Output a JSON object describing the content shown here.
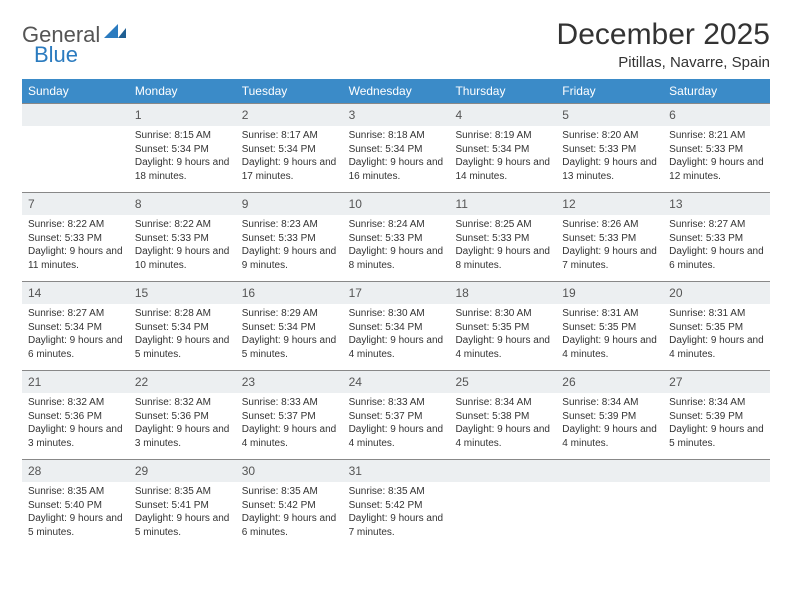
{
  "logo": {
    "text_gray": "General",
    "text_blue": "Blue"
  },
  "title": "December 2025",
  "location": "Pitillas, Navarre, Spain",
  "colors": {
    "header_bg": "#3b8bc8",
    "header_text": "#ffffff",
    "daynum_bg": "#eceff1",
    "border": "#888888",
    "text": "#333333"
  },
  "weekdays": [
    "Sunday",
    "Monday",
    "Tuesday",
    "Wednesday",
    "Thursday",
    "Friday",
    "Saturday"
  ],
  "weeks": [
    [
      {
        "n": "",
        "sunrise": "",
        "sunset": "",
        "daylight": ""
      },
      {
        "n": "1",
        "sunrise": "Sunrise: 8:15 AM",
        "sunset": "Sunset: 5:34 PM",
        "daylight": "Daylight: 9 hours and 18 minutes."
      },
      {
        "n": "2",
        "sunrise": "Sunrise: 8:17 AM",
        "sunset": "Sunset: 5:34 PM",
        "daylight": "Daylight: 9 hours and 17 minutes."
      },
      {
        "n": "3",
        "sunrise": "Sunrise: 8:18 AM",
        "sunset": "Sunset: 5:34 PM",
        "daylight": "Daylight: 9 hours and 16 minutes."
      },
      {
        "n": "4",
        "sunrise": "Sunrise: 8:19 AM",
        "sunset": "Sunset: 5:34 PM",
        "daylight": "Daylight: 9 hours and 14 minutes."
      },
      {
        "n": "5",
        "sunrise": "Sunrise: 8:20 AM",
        "sunset": "Sunset: 5:33 PM",
        "daylight": "Daylight: 9 hours and 13 minutes."
      },
      {
        "n": "6",
        "sunrise": "Sunrise: 8:21 AM",
        "sunset": "Sunset: 5:33 PM",
        "daylight": "Daylight: 9 hours and 12 minutes."
      }
    ],
    [
      {
        "n": "7",
        "sunrise": "Sunrise: 8:22 AM",
        "sunset": "Sunset: 5:33 PM",
        "daylight": "Daylight: 9 hours and 11 minutes."
      },
      {
        "n": "8",
        "sunrise": "Sunrise: 8:22 AM",
        "sunset": "Sunset: 5:33 PM",
        "daylight": "Daylight: 9 hours and 10 minutes."
      },
      {
        "n": "9",
        "sunrise": "Sunrise: 8:23 AM",
        "sunset": "Sunset: 5:33 PM",
        "daylight": "Daylight: 9 hours and 9 minutes."
      },
      {
        "n": "10",
        "sunrise": "Sunrise: 8:24 AM",
        "sunset": "Sunset: 5:33 PM",
        "daylight": "Daylight: 9 hours and 8 minutes."
      },
      {
        "n": "11",
        "sunrise": "Sunrise: 8:25 AM",
        "sunset": "Sunset: 5:33 PM",
        "daylight": "Daylight: 9 hours and 8 minutes."
      },
      {
        "n": "12",
        "sunrise": "Sunrise: 8:26 AM",
        "sunset": "Sunset: 5:33 PM",
        "daylight": "Daylight: 9 hours and 7 minutes."
      },
      {
        "n": "13",
        "sunrise": "Sunrise: 8:27 AM",
        "sunset": "Sunset: 5:33 PM",
        "daylight": "Daylight: 9 hours and 6 minutes."
      }
    ],
    [
      {
        "n": "14",
        "sunrise": "Sunrise: 8:27 AM",
        "sunset": "Sunset: 5:34 PM",
        "daylight": "Daylight: 9 hours and 6 minutes."
      },
      {
        "n": "15",
        "sunrise": "Sunrise: 8:28 AM",
        "sunset": "Sunset: 5:34 PM",
        "daylight": "Daylight: 9 hours and 5 minutes."
      },
      {
        "n": "16",
        "sunrise": "Sunrise: 8:29 AM",
        "sunset": "Sunset: 5:34 PM",
        "daylight": "Daylight: 9 hours and 5 minutes."
      },
      {
        "n": "17",
        "sunrise": "Sunrise: 8:30 AM",
        "sunset": "Sunset: 5:34 PM",
        "daylight": "Daylight: 9 hours and 4 minutes."
      },
      {
        "n": "18",
        "sunrise": "Sunrise: 8:30 AM",
        "sunset": "Sunset: 5:35 PM",
        "daylight": "Daylight: 9 hours and 4 minutes."
      },
      {
        "n": "19",
        "sunrise": "Sunrise: 8:31 AM",
        "sunset": "Sunset: 5:35 PM",
        "daylight": "Daylight: 9 hours and 4 minutes."
      },
      {
        "n": "20",
        "sunrise": "Sunrise: 8:31 AM",
        "sunset": "Sunset: 5:35 PM",
        "daylight": "Daylight: 9 hours and 4 minutes."
      }
    ],
    [
      {
        "n": "21",
        "sunrise": "Sunrise: 8:32 AM",
        "sunset": "Sunset: 5:36 PM",
        "daylight": "Daylight: 9 hours and 3 minutes."
      },
      {
        "n": "22",
        "sunrise": "Sunrise: 8:32 AM",
        "sunset": "Sunset: 5:36 PM",
        "daylight": "Daylight: 9 hours and 3 minutes."
      },
      {
        "n": "23",
        "sunrise": "Sunrise: 8:33 AM",
        "sunset": "Sunset: 5:37 PM",
        "daylight": "Daylight: 9 hours and 4 minutes."
      },
      {
        "n": "24",
        "sunrise": "Sunrise: 8:33 AM",
        "sunset": "Sunset: 5:37 PM",
        "daylight": "Daylight: 9 hours and 4 minutes."
      },
      {
        "n": "25",
        "sunrise": "Sunrise: 8:34 AM",
        "sunset": "Sunset: 5:38 PM",
        "daylight": "Daylight: 9 hours and 4 minutes."
      },
      {
        "n": "26",
        "sunrise": "Sunrise: 8:34 AM",
        "sunset": "Sunset: 5:39 PM",
        "daylight": "Daylight: 9 hours and 4 minutes."
      },
      {
        "n": "27",
        "sunrise": "Sunrise: 8:34 AM",
        "sunset": "Sunset: 5:39 PM",
        "daylight": "Daylight: 9 hours and 5 minutes."
      }
    ],
    [
      {
        "n": "28",
        "sunrise": "Sunrise: 8:35 AM",
        "sunset": "Sunset: 5:40 PM",
        "daylight": "Daylight: 9 hours and 5 minutes."
      },
      {
        "n": "29",
        "sunrise": "Sunrise: 8:35 AM",
        "sunset": "Sunset: 5:41 PM",
        "daylight": "Daylight: 9 hours and 5 minutes."
      },
      {
        "n": "30",
        "sunrise": "Sunrise: 8:35 AM",
        "sunset": "Sunset: 5:42 PM",
        "daylight": "Daylight: 9 hours and 6 minutes."
      },
      {
        "n": "31",
        "sunrise": "Sunrise: 8:35 AM",
        "sunset": "Sunset: 5:42 PM",
        "daylight": "Daylight: 9 hours and 7 minutes."
      },
      {
        "n": "",
        "sunrise": "",
        "sunset": "",
        "daylight": ""
      },
      {
        "n": "",
        "sunrise": "",
        "sunset": "",
        "daylight": ""
      },
      {
        "n": "",
        "sunrise": "",
        "sunset": "",
        "daylight": ""
      }
    ]
  ]
}
